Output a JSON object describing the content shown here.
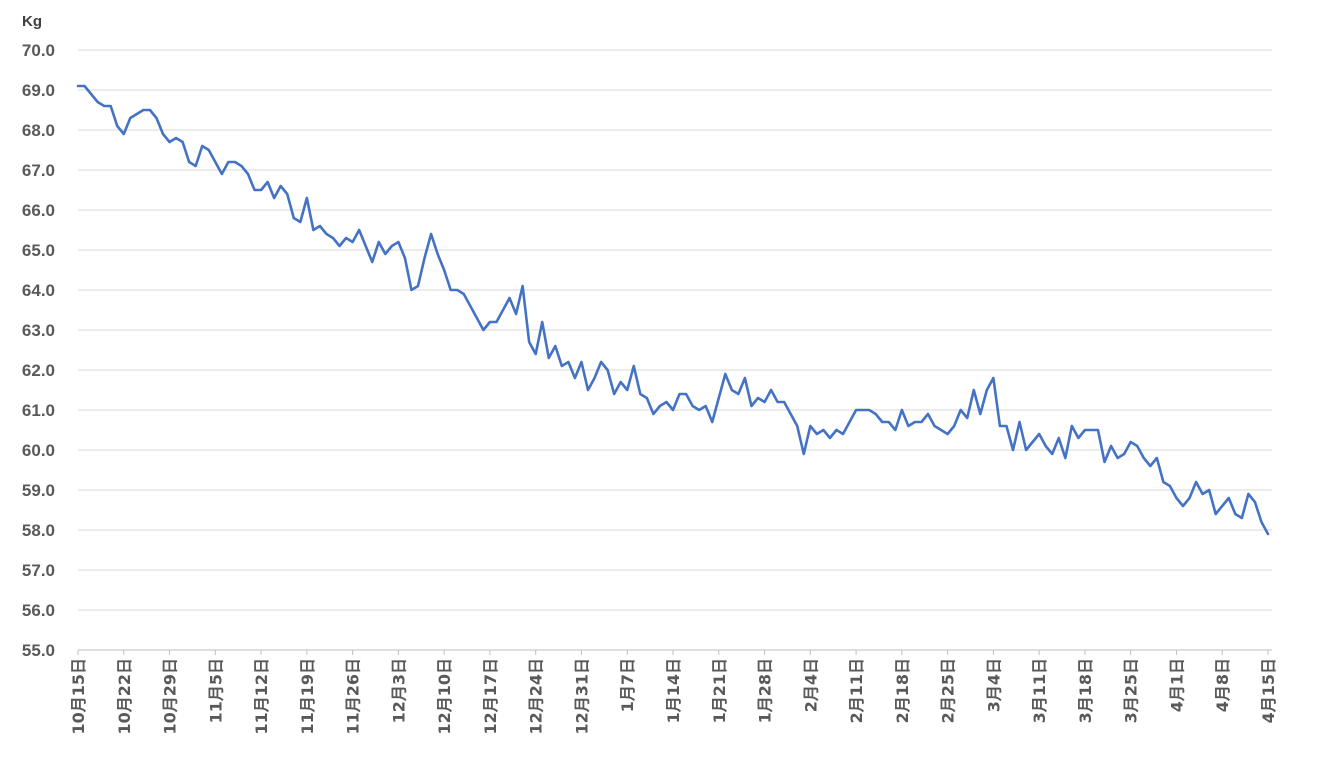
{
  "chart_data": {
    "type": "line",
    "ylabel": "Kg",
    "ylim": [
      55.0,
      70.0
    ],
    "y_ticks": [
      "55.0",
      "56.0",
      "57.0",
      "58.0",
      "59.0",
      "60.0",
      "61.0",
      "62.0",
      "63.0",
      "64.0",
      "65.0",
      "66.0",
      "67.0",
      "68.0",
      "69.0",
      "70.0"
    ],
    "x_ticks": [
      {
        "label": "10月15日",
        "day": 0
      },
      {
        "label": "10月22日",
        "day": 7
      },
      {
        "label": "10月29日",
        "day": 14
      },
      {
        "label": "11月5日",
        "day": 21
      },
      {
        "label": "11月12日",
        "day": 28
      },
      {
        "label": "11月19日",
        "day": 35
      },
      {
        "label": "11月26日",
        "day": 42
      },
      {
        "label": "12月3日",
        "day": 49
      },
      {
        "label": "12月10日",
        "day": 56
      },
      {
        "label": "12月17日",
        "day": 63
      },
      {
        "label": "12月24日",
        "day": 70
      },
      {
        "label": "12月31日",
        "day": 77
      },
      {
        "label": "1月7日",
        "day": 84
      },
      {
        "label": "1月14日",
        "day": 91
      },
      {
        "label": "1月21日",
        "day": 98
      },
      {
        "label": "1月28日",
        "day": 105
      },
      {
        "label": "2月4日",
        "day": 112
      },
      {
        "label": "2月11日",
        "day": 119
      },
      {
        "label": "2月18日",
        "day": 126
      },
      {
        "label": "2月25日",
        "day": 133
      },
      {
        "label": "3月4日",
        "day": 140
      },
      {
        "label": "3月11日",
        "day": 147
      },
      {
        "label": "3月18日",
        "day": 154
      },
      {
        "label": "3月25日",
        "day": 161
      },
      {
        "label": "4月1日",
        "day": 168
      },
      {
        "label": "4月8日",
        "day": 175
      },
      {
        "label": "4月15日",
        "day": 182
      }
    ],
    "x_range": [
      0,
      182
    ],
    "grid": "horizontal",
    "legend": "none",
    "series": [
      {
        "color": "#4472c4",
        "values": [
          69.1,
          69.1,
          68.9,
          68.7,
          68.6,
          68.6,
          68.1,
          67.9,
          68.3,
          68.4,
          68.5,
          68.5,
          68.3,
          67.9,
          67.7,
          67.8,
          67.7,
          67.2,
          67.1,
          67.6,
          67.5,
          67.2,
          66.9,
          67.2,
          67.2,
          67.1,
          66.9,
          66.5,
          66.5,
          66.7,
          66.3,
          66.6,
          66.4,
          65.8,
          65.7,
          66.3,
          65.5,
          65.6,
          65.4,
          65.3,
          65.1,
          65.3,
          65.2,
          65.5,
          65.1,
          64.7,
          65.2,
          64.9,
          65.1,
          65.2,
          64.8,
          64.0,
          64.1,
          64.8,
          65.4,
          64.9,
          64.5,
          64.0,
          64.0,
          63.9,
          63.6,
          63.3,
          63.0,
          63.2,
          63.2,
          63.5,
          63.8,
          63.4,
          64.1,
          62.7,
          62.4,
          63.2,
          62.3,
          62.6,
          62.1,
          62.2,
          61.8,
          62.2,
          61.5,
          61.8,
          62.2,
          62.0,
          61.4,
          61.7,
          61.5,
          62.1,
          61.4,
          61.3,
          60.9,
          61.1,
          61.2,
          61.0,
          61.4,
          61.4,
          61.1,
          61.0,
          61.1,
          60.7,
          61.3,
          61.9,
          61.5,
          61.4,
          61.8,
          61.1,
          61.3,
          61.2,
          61.5,
          61.2,
          61.2,
          60.9,
          60.6,
          59.9,
          60.6,
          60.4,
          60.5,
          60.3,
          60.5,
          60.4,
          60.7,
          61.0,
          61.0,
          61.0,
          60.9,
          60.7,
          60.7,
          60.5,
          61.0,
          60.6,
          60.7,
          60.7,
          60.9,
          60.6,
          60.5,
          60.4,
          60.6,
          61.0,
          60.8,
          61.5,
          60.9,
          61.5,
          61.8,
          60.6,
          60.6,
          60.0,
          60.7,
          60.0,
          60.2,
          60.4,
          60.1,
          59.9,
          60.3,
          59.8,
          60.6,
          60.3,
          60.5,
          60.5,
          60.5,
          59.7,
          60.1,
          59.8,
          59.9,
          60.2,
          60.1,
          59.8,
          59.6,
          59.8,
          59.2,
          59.1,
          58.8,
          58.6,
          58.8,
          59.2,
          58.9,
          59.0,
          58.4,
          58.6,
          58.8,
          58.4,
          58.3,
          58.9,
          58.7,
          58.2,
          57.9
        ]
      }
    ]
  }
}
